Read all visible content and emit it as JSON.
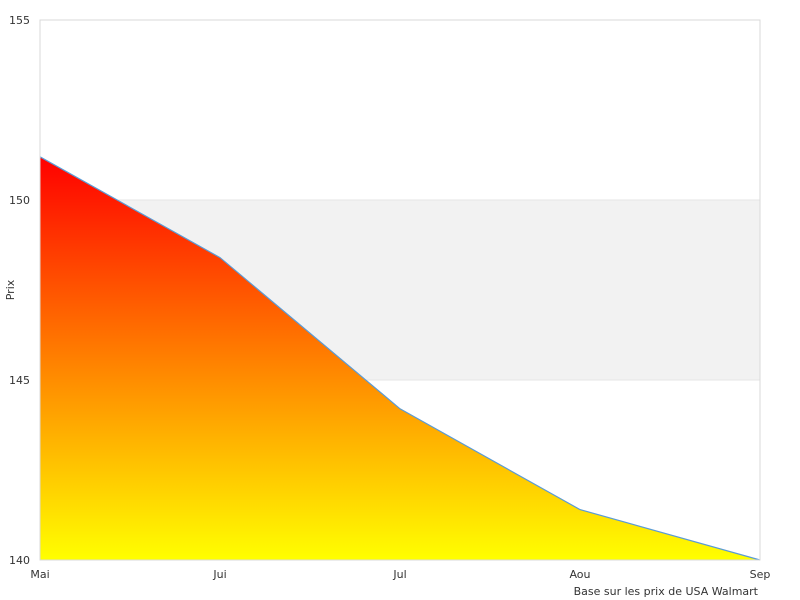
{
  "chart_data": {
    "type": "area",
    "title": "",
    "xlabel": "",
    "ylabel": "Prix",
    "categories": [
      "Mai",
      "Jui",
      "Jul",
      "Aou",
      "Sep"
    ],
    "series": [
      {
        "values": [
          151.2,
          148.4,
          144.2,
          141.4,
          140.0
        ]
      }
    ],
    "ylim": [
      140,
      155
    ],
    "yticks": [
      140,
      145,
      150,
      155
    ],
    "grid": true,
    "legend": "none",
    "gradient_colors": [
      "#ff0000",
      "#ffff00"
    ],
    "line_color": "#5b9bd5",
    "band_color": "#f2f2f2"
  },
  "caption": "Base sur les prix de USA Walmart"
}
